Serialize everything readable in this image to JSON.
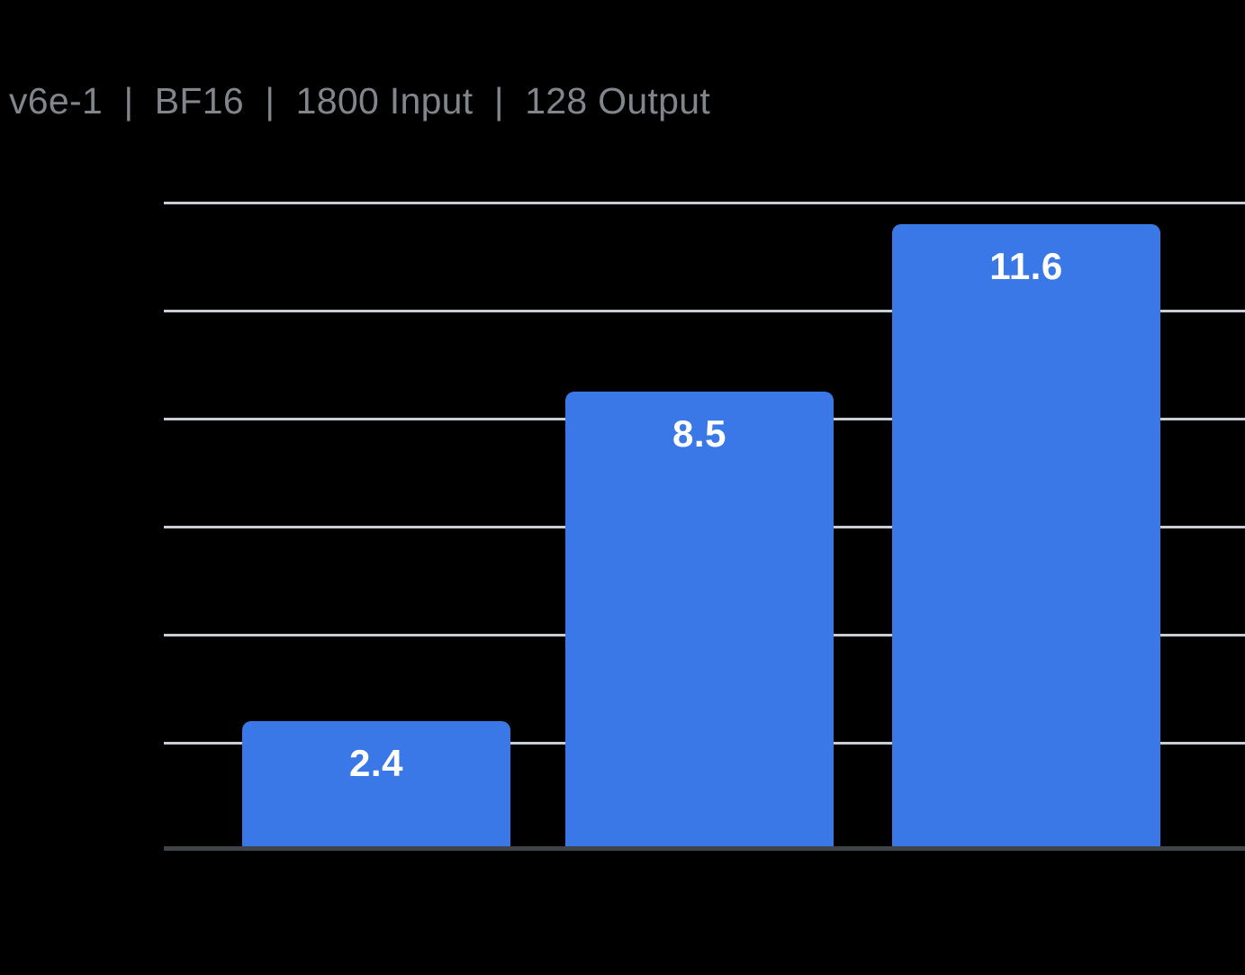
{
  "title": "v6e-1  |  BF16  |  1800 Input  |  128 Output",
  "colors": {
    "background": "#000000",
    "bar_fill": "#3B78E7",
    "bar_label_text": "#FFFFFF",
    "gridline": "#C9CED6",
    "axis_line": "#3F434A",
    "title_text": "#80868B"
  },
  "chart_data": {
    "type": "bar",
    "title": "v6e-1  |  BF16  |  1800 Input  |  128 Output",
    "categories": [
      "",
      "",
      ""
    ],
    "values": [
      2.4,
      8.5,
      11.6
    ],
    "data_labels": [
      "2.4",
      "8.5",
      "11.6"
    ],
    "xlabel": "",
    "ylabel": "",
    "ylim": [
      0,
      12
    ],
    "gridline_interval": 2,
    "grid": true,
    "legend": false,
    "axis_tick_labels_visible": false,
    "data_label_position": "inside-top"
  }
}
